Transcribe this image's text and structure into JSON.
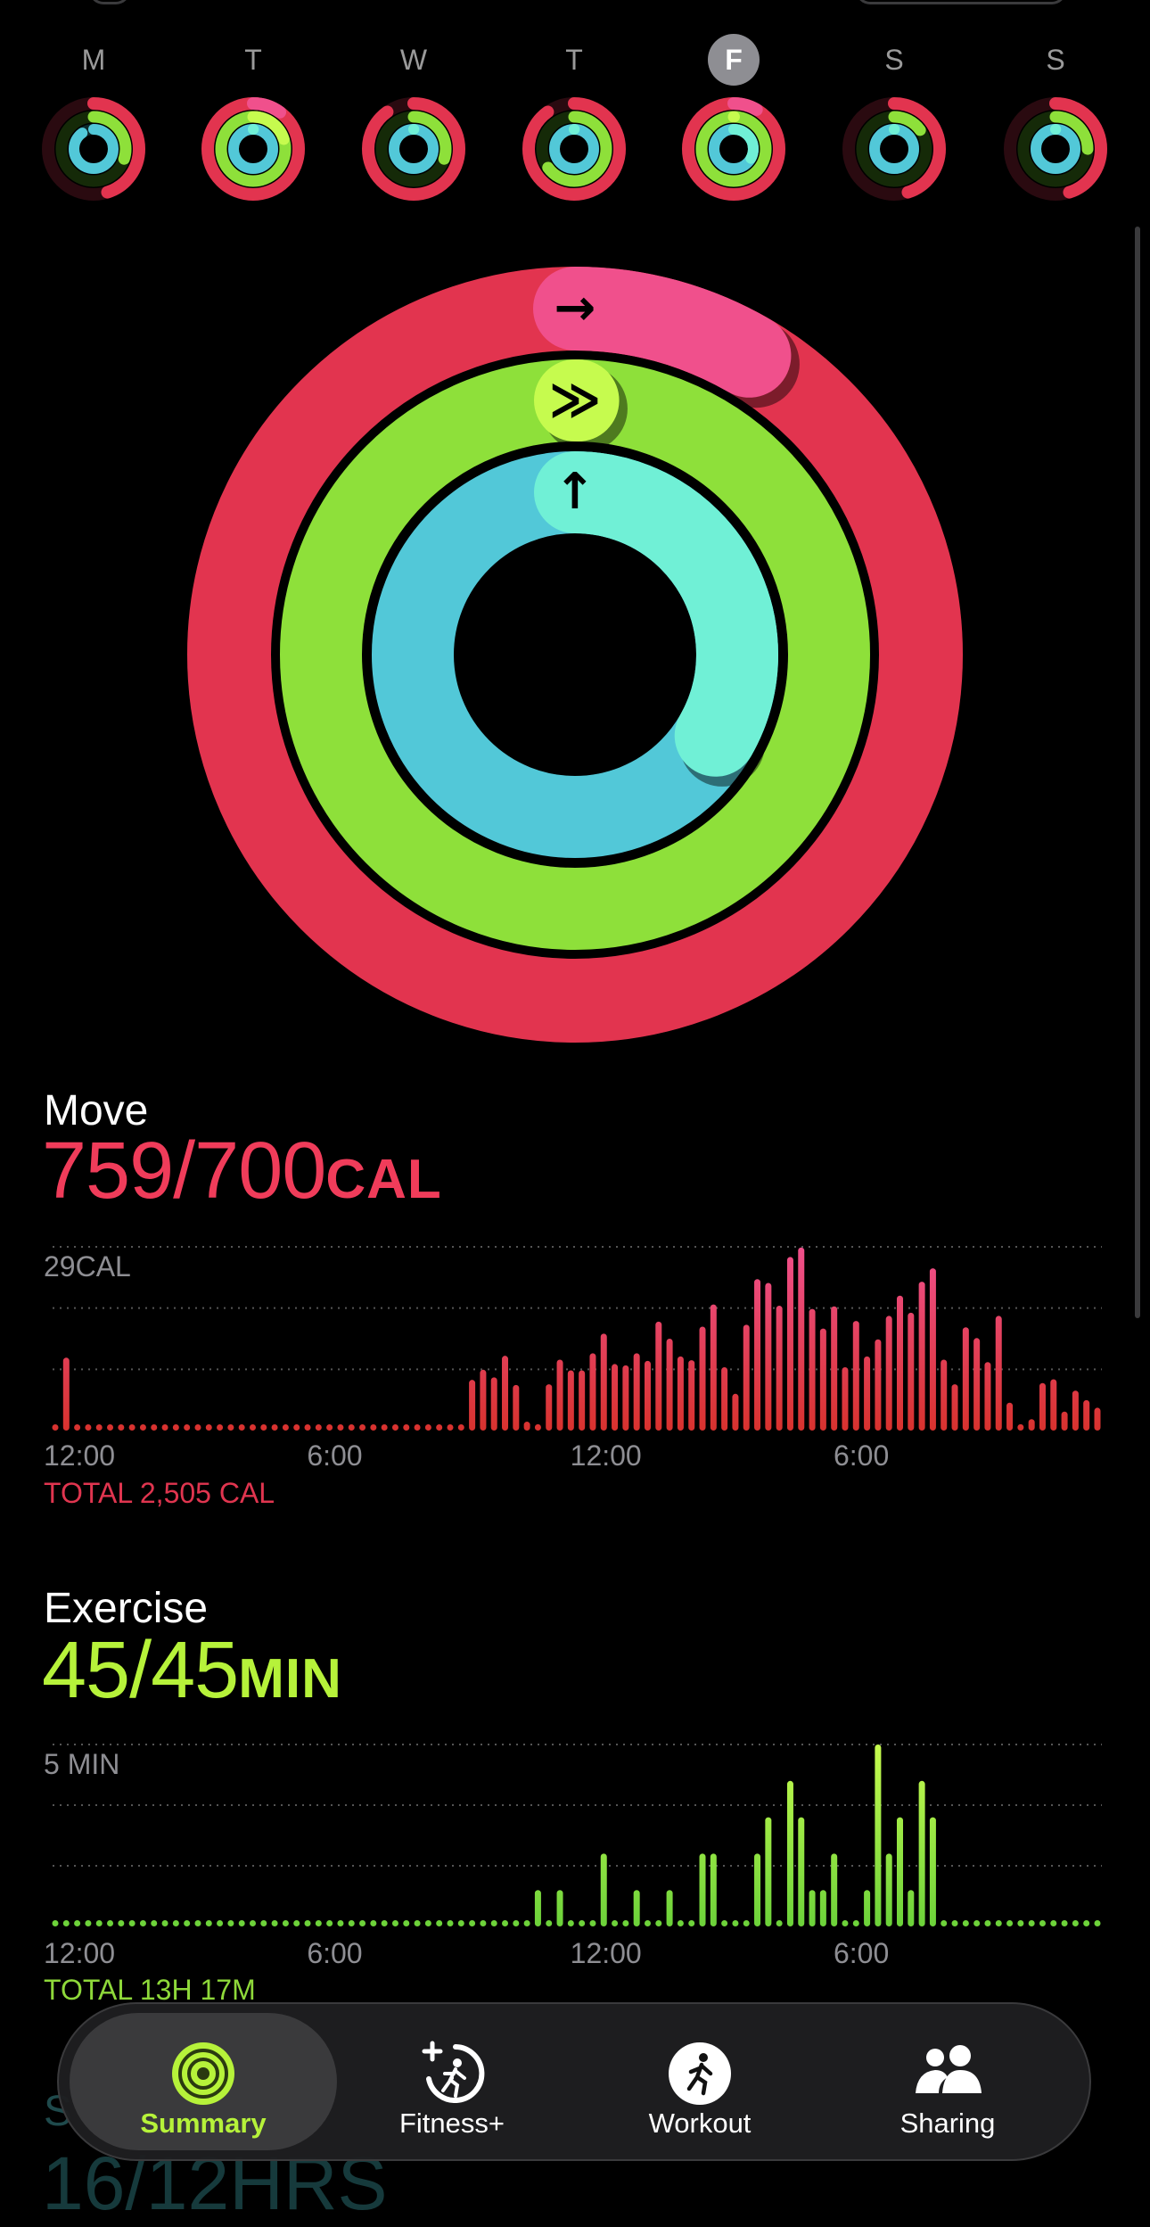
{
  "week": {
    "days": [
      {
        "letter": "M",
        "move": 0.45,
        "exercise": 0.3,
        "stand": 0.9,
        "selected": false
      },
      {
        "letter": "T",
        "move": 1.1,
        "exercise": 1.2,
        "stand": 1.0,
        "selected": false
      },
      {
        "letter": "W",
        "move": 0.9,
        "exercise": 0.3,
        "stand": 1.0,
        "selected": false
      },
      {
        "letter": "T",
        "move": 0.9,
        "exercise": 0.65,
        "stand": 1.0,
        "selected": false
      },
      {
        "letter": "F",
        "move": 1.084,
        "exercise": 1.0,
        "stand": 1.33,
        "selected": true
      },
      {
        "letter": "S",
        "move": 0.45,
        "exercise": 0.15,
        "stand": 1.0,
        "selected": false
      },
      {
        "letter": "S",
        "move": 0.45,
        "exercise": 0.25,
        "stand": 1.0,
        "selected": false
      }
    ]
  },
  "rings": {
    "move": {
      "fraction": 1.084,
      "arrow": "→",
      "color": "#e2344f",
      "tip": "#f0508c"
    },
    "exercise": {
      "fraction": 1.0,
      "arrow": "≫",
      "color": "#8ee03a",
      "tip": "#c6fb4e"
    },
    "stand": {
      "fraction": 1.333,
      "arrow": "↑",
      "color": "#52c8d8",
      "tip": "#70f0d6"
    }
  },
  "move": {
    "label": "Move",
    "value": "759/700",
    "unit": "CAL",
    "color": "#f03c5a",
    "max_label": "29CAL",
    "total": "TOTAL 2,505 CAL"
  },
  "exercise": {
    "label": "Exercise",
    "value": "45/45",
    "unit": "MIN",
    "color": "#b6f23a",
    "max_label": "5 MIN",
    "total": "TOTAL 13H 17M"
  },
  "stand": {
    "label": "S",
    "value": "16/12HRS"
  },
  "chart_data": [
    {
      "type": "bar",
      "name": "move",
      "x_ticks": [
        "12:00",
        "6:00",
        "12:00",
        "6:00"
      ],
      "ylim": [
        0,
        29
      ],
      "y_label": "29CAL",
      "grid": true,
      "values": [
        0,
        11.5,
        0,
        0,
        0,
        0,
        0,
        0,
        0,
        0,
        0,
        0,
        0,
        0,
        0,
        0,
        0,
        0,
        0,
        0,
        0,
        0,
        0,
        0,
        0,
        0,
        0,
        0,
        0,
        0,
        0,
        0,
        0,
        0,
        0,
        0,
        0,
        0,
        8.0,
        9.6,
        8.4,
        11.8,
        7.2,
        1.4,
        1.0,
        7.3,
        11.2,
        9.5,
        9.5,
        12.2,
        15.3,
        10.5,
        10.3,
        12.2,
        11.0,
        17.2,
        14.5,
        11.7,
        11.1,
        16.4,
        19.9,
        10.0,
        5.8,
        16.7,
        23.9,
        23.3,
        19.7,
        27.4,
        28.9,
        19.2,
        16.1,
        19.6,
        10.0,
        17.3,
        11.7,
        14.4,
        18.1,
        21.3,
        18.6,
        23.5,
        25.6,
        11.2,
        7.3,
        16.3,
        14.6,
        10.8,
        18.1,
        4.4,
        1.0,
        1.8,
        7.5,
        8.1,
        3.0,
        6.3,
        4.8,
        3.6
      ]
    },
    {
      "type": "bar",
      "name": "exercise",
      "x_ticks": [
        "12:00",
        "6:00",
        "12:00",
        "6:00"
      ],
      "ylim": [
        0,
        5
      ],
      "y_label": "5 MIN",
      "grid": true,
      "values": [
        0,
        0,
        0,
        0,
        0,
        0,
        0,
        0,
        0,
        0,
        0,
        0,
        0,
        0,
        0,
        0,
        0,
        0,
        0,
        0,
        0,
        0,
        0,
        0,
        0,
        0,
        0,
        0,
        0,
        0,
        0,
        0,
        0,
        0,
        0,
        0,
        0,
        0,
        0,
        0,
        0,
        0,
        0,
        0,
        1,
        0,
        1,
        0,
        0,
        0,
        2,
        0,
        0,
        1,
        0,
        0,
        1,
        0,
        0,
        2,
        2,
        0,
        0,
        0,
        2,
        3,
        0,
        4,
        3,
        1,
        1,
        2,
        0,
        0,
        1,
        5,
        2,
        3,
        1,
        4,
        3,
        0,
        0,
        0,
        0,
        0,
        0,
        0,
        0,
        0,
        0,
        0,
        0,
        0,
        0,
        0
      ]
    }
  ],
  "tabs": [
    {
      "label": "Summary",
      "icon": "activity-rings-icon",
      "active": true
    },
    {
      "label": "Fitness+",
      "icon": "fitness-plus-icon",
      "active": false
    },
    {
      "label": "Workout",
      "icon": "workout-runner-icon",
      "active": false
    },
    {
      "label": "Sharing",
      "icon": "sharing-people-icon",
      "active": false
    }
  ]
}
